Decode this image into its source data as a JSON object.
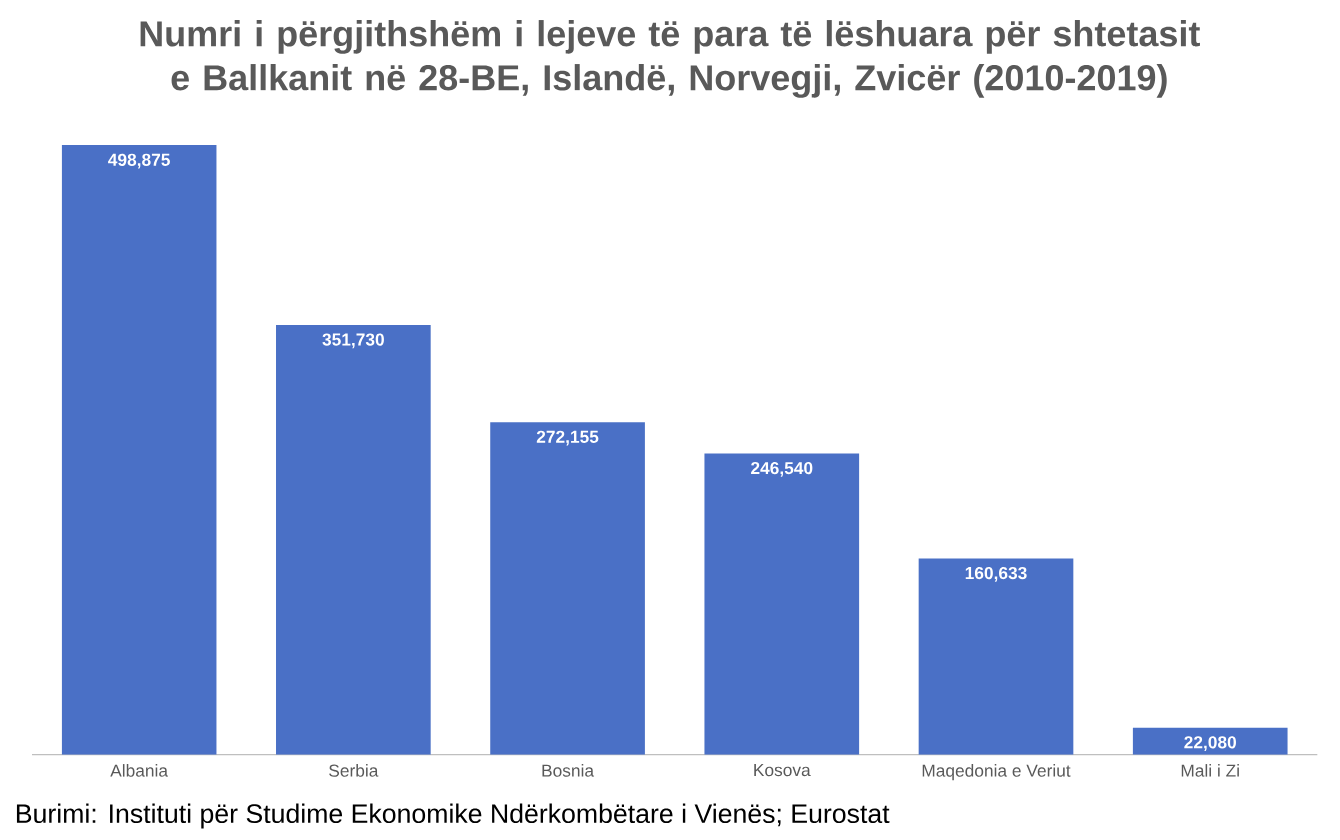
{
  "chart_data": {
    "type": "bar",
    "title": "Numri i përgjithshëm i lejeve të para të lëshuara për shtetasit e Ballkanit në 28-BE, Islandë, Norvegji, Zvicër  (2010-2019)",
    "categories": [
      "Albania",
      "Serbia",
      "Bosnia",
      "Kosova",
      "Maqedonia e Veriut",
      "Mali i Zi"
    ],
    "values": [
      498875,
      351730,
      272155,
      246540,
      160633,
      22080
    ],
    "value_labels": [
      "498,875",
      "351,730",
      "272,155",
      "246,540",
      "160,633",
      "22,080"
    ],
    "color": "#4a70c6",
    "annotations": [
      "Burimi: Instituti për Studime Ekonomike Ndërkombëtare i Vienës; Eurostat"
    ]
  }
}
